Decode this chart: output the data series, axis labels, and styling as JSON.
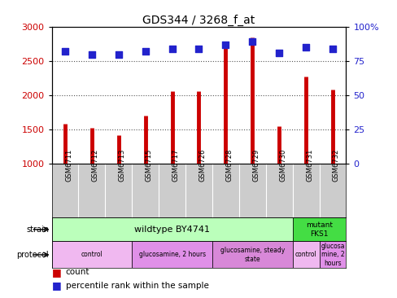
{
  "title": "GDS344 / 3268_f_at",
  "samples": [
    "GSM6711",
    "GSM6712",
    "GSM6713",
    "GSM6715",
    "GSM6717",
    "GSM6726",
    "GSM6728",
    "GSM6729",
    "GSM6730",
    "GSM6731",
    "GSM6732"
  ],
  "counts": [
    1580,
    1530,
    1420,
    1710,
    2060,
    2060,
    2720,
    2840,
    1550,
    2280,
    2080
  ],
  "percentiles": [
    82,
    80,
    80,
    82,
    84,
    84,
    87,
    89,
    81,
    85,
    84
  ],
  "ylim_left": [
    1000,
    3000
  ],
  "ylim_right": [
    0,
    100
  ],
  "yticks_left": [
    1000,
    1500,
    2000,
    2500,
    3000
  ],
  "yticks_right": [
    0,
    25,
    50,
    75,
    100
  ],
  "ytick_right_labels": [
    "0",
    "25",
    "50",
    "75",
    "100%"
  ],
  "bar_color": "#cc0000",
  "dot_color": "#2222cc",
  "dot_size": 40,
  "strain_wildtype": {
    "label": "wildtype BY4741",
    "start": 0,
    "end": 9,
    "color": "#bbffbb"
  },
  "strain_mutant": {
    "label": "mutant\nFKS1",
    "start": 9,
    "end": 11,
    "color": "#44dd44"
  },
  "protocols": [
    {
      "label": "control",
      "start": 0,
      "end": 3,
      "color": "#f0b8f0"
    },
    {
      "label": "glucosamine, 2 hours",
      "start": 3,
      "end": 6,
      "color": "#e090e8"
    },
    {
      "label": "glucosamine, steady\nstate",
      "start": 6,
      "end": 9,
      "color": "#d888d8"
    },
    {
      "label": "control",
      "start": 9,
      "end": 10,
      "color": "#f0b8f0"
    },
    {
      "label": "glucosa\nmine, 2\nhours",
      "start": 10,
      "end": 11,
      "color": "#e090e8"
    }
  ],
  "sample_bg": "#cccccc",
  "tick_color_left": "#cc0000",
  "tick_color_right": "#2222cc",
  "grid_color": "#555555",
  "grid_linestyle": "dotted",
  "title_fontsize": 10,
  "tick_fontsize": 8,
  "sample_fontsize": 6,
  "annotation_fontsize": 7,
  "legend_fontsize": 7.5
}
